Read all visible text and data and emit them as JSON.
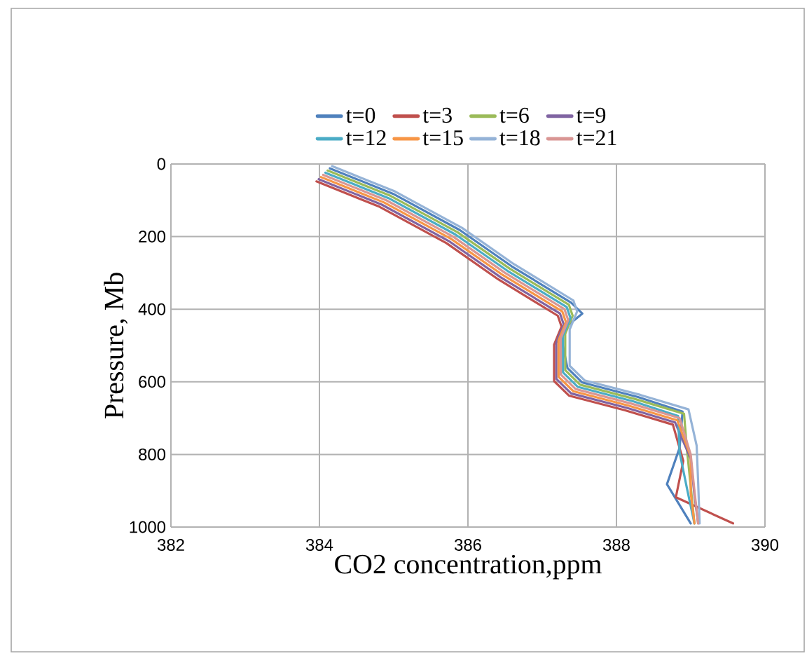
{
  "chart_data": {
    "type": "line",
    "xlabel": "CO2 concentration,ppm",
    "ylabel": "Pressure, Mb",
    "xlim": [
      382,
      390
    ],
    "xticks": [
      382,
      384,
      386,
      388,
      390
    ],
    "ylim": [
      1000,
      0
    ],
    "yticks": [
      0,
      200,
      400,
      600,
      800,
      1000
    ],
    "grid": true,
    "legend": "top",
    "marker": "none",
    "line_style": "solid",
    "series": [
      {
        "name": "t=0",
        "color": "#4f81bd",
        "x": [
          384.14,
          384.99,
          385.89,
          386.59,
          387.39,
          387.54,
          387.24,
          387.34,
          387.54,
          388.29,
          388.89,
          388.85,
          388.68,
          389.0
        ],
        "values": [
          12,
          82,
          182,
          282,
          382,
          412,
          462,
          562,
          602,
          642,
          682,
          782,
          882,
          990
        ]
      },
      {
        "name": "t=3",
        "color": "#c0504d",
        "x": [
          383.96,
          384.81,
          385.71,
          386.41,
          387.21,
          387.26,
          387.16,
          387.16,
          387.36,
          388.11,
          388.76,
          388.9,
          388.8,
          389.57
        ],
        "values": [
          48,
          118,
          218,
          318,
          418,
          448,
          498,
          598,
          638,
          678,
          718,
          818,
          918,
          990
        ]
      },
      {
        "name": "t=6",
        "color": "#9bbb59",
        "x": [
          384.11,
          384.96,
          385.86,
          386.56,
          387.36,
          387.41,
          387.31,
          387.31,
          387.51,
          388.26,
          388.91,
          388.95,
          389.0,
          389.05
        ],
        "values": [
          18,
          88,
          188,
          288,
          388,
          418,
          468,
          568,
          608,
          648,
          688,
          788,
          888,
          990
        ]
      },
      {
        "name": "t=9",
        "color": "#8064a2",
        "x": [
          383.99,
          384.84,
          385.74,
          386.44,
          387.24,
          387.29,
          387.19,
          387.19,
          387.39,
          388.14,
          388.79,
          389.0,
          389.05,
          389.1
        ],
        "values": [
          42,
          112,
          212,
          312,
          412,
          442,
          492,
          592,
          632,
          672,
          712,
          812,
          912,
          990
        ]
      },
      {
        "name": "t=12",
        "color": "#4bacc6",
        "x": [
          384.08,
          384.93,
          385.83,
          386.53,
          387.33,
          387.38,
          387.28,
          387.28,
          387.48,
          388.23,
          388.83,
          388.85,
          388.95,
          389.05
        ],
        "values": [
          24,
          94,
          194,
          294,
          394,
          424,
          474,
          574,
          614,
          654,
          694,
          794,
          894,
          990
        ]
      },
      {
        "name": "t=15",
        "color": "#f79646",
        "x": [
          384.02,
          384.87,
          385.77,
          386.47,
          387.27,
          387.32,
          387.22,
          387.22,
          387.42,
          388.17,
          388.82,
          389.0,
          389.0,
          389.05
        ],
        "values": [
          36,
          106,
          206,
          306,
          406,
          436,
          486,
          586,
          626,
          666,
          706,
          806,
          906,
          990
        ]
      },
      {
        "name": "t=18",
        "color": "#95b3d7",
        "x": [
          384.17,
          385.02,
          385.92,
          386.62,
          387.42,
          387.47,
          387.37,
          387.37,
          387.57,
          388.32,
          388.97,
          389.08,
          389.1,
          389.12
        ],
        "values": [
          6,
          76,
          176,
          276,
          376,
          406,
          456,
          556,
          596,
          636,
          676,
          776,
          876,
          990
        ]
      },
      {
        "name": "t=21",
        "color": "#d99694",
        "x": [
          384.05,
          384.9,
          385.8,
          386.5,
          387.3,
          387.35,
          387.25,
          387.25,
          387.45,
          388.2,
          388.85,
          389.0,
          389.05,
          389.1
        ],
        "values": [
          30,
          100,
          200,
          300,
          400,
          430,
          480,
          580,
          620,
          660,
          700,
          800,
          900,
          990
        ]
      }
    ]
  }
}
